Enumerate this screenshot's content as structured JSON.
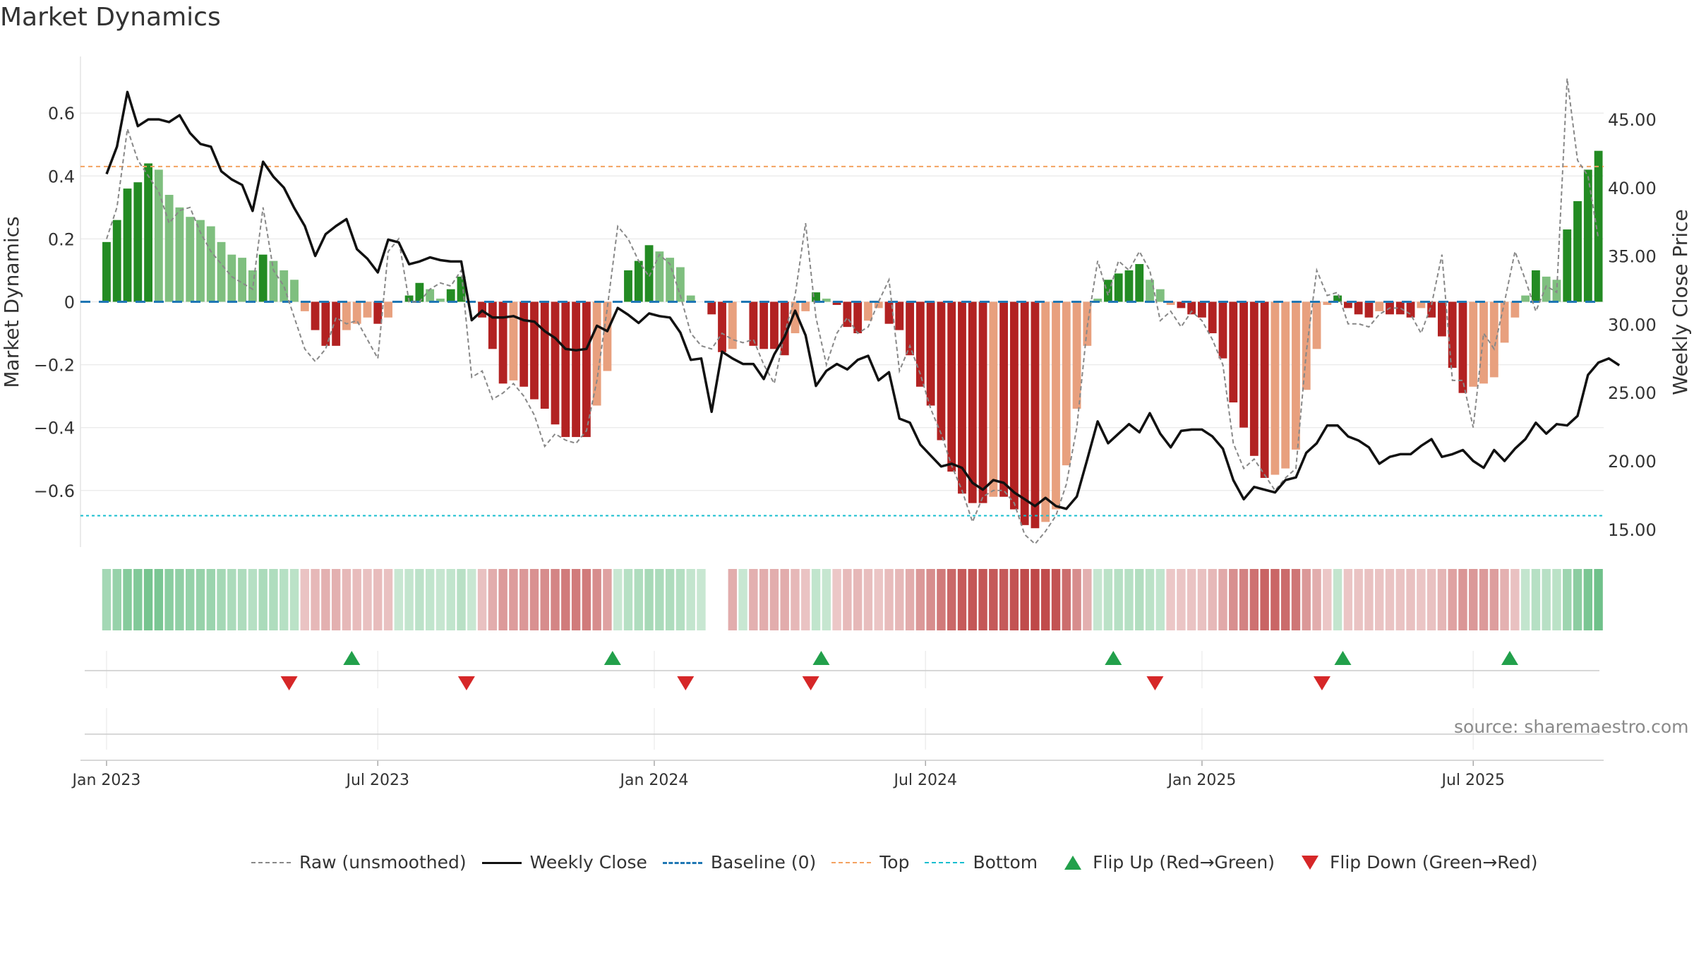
{
  "title": "Market Dynamics",
  "source": "source: sharemaestro.com",
  "legend": {
    "raw": "Raw (unsmoothed)",
    "close": "Weekly Close",
    "baseline": "Baseline (0)",
    "top": "Top",
    "bottom": "Bottom",
    "flip_up": "Flip Up (Red→Green)",
    "flip_down": "Flip Down (Green→Red)"
  },
  "colors": {
    "strong_green": "#238b23",
    "light_green": "#7fbf7f",
    "strong_red": "#b22222",
    "light_red": "#e8a07e",
    "close_line": "#111111",
    "raw_line": "#888888",
    "baseline": "#1f77b4",
    "top": "#f4a261",
    "bottom": "#17becf",
    "flip_up": "#22a04b",
    "flip_down": "#d62728"
  },
  "chart_data": {
    "type": "bar",
    "ylabel": "Market Dynamics",
    "y2label": "Weekly Close Price",
    "ylim": [
      -0.78,
      0.78
    ],
    "y2lim": [
      13.7,
      49.6
    ],
    "yticks": [
      {
        "v": 0.6,
        "label": "0.6"
      },
      {
        "v": 0.4,
        "label": "0.4"
      },
      {
        "v": 0.2,
        "label": "0.2"
      },
      {
        "v": 0,
        "label": "0"
      },
      {
        "v": -0.2,
        "label": "−0.2"
      },
      {
        "v": -0.4,
        "label": "−0.4"
      },
      {
        "v": -0.6,
        "label": "−0.6"
      }
    ],
    "y2ticks": [
      "45.00",
      "40.00",
      "35.00",
      "30.00",
      "25.00",
      "20.00",
      "15.00"
    ],
    "xticks": [
      {
        "week": 0,
        "label": "Jan 2023"
      },
      {
        "week": 26,
        "label": "Jul 2023"
      },
      {
        "week": 52.5,
        "label": "Jan 2024"
      },
      {
        "week": 78.5,
        "label": "Jul 2024"
      },
      {
        "week": 105,
        "label": "Jan 2025"
      },
      {
        "week": 131,
        "label": "Jul 2025"
      }
    ],
    "top": 0.43,
    "bottom": -0.68,
    "baseline": 0,
    "x_start_week": -2,
    "dynamics": [
      0.19,
      0.26,
      0.36,
      0.38,
      0.44,
      0.42,
      0.34,
      0.3,
      0.27,
      0.26,
      0.24,
      0.19,
      0.15,
      0.14,
      0.1,
      0.15,
      0.13,
      0.1,
      0.07,
      -0.03,
      -0.09,
      -0.14,
      -0.14,
      -0.09,
      -0.07,
      -0.05,
      -0.07,
      -0.05,
      0.0,
      0.02,
      0.06,
      0.04,
      0.01,
      0.04,
      0.08,
      0.0,
      -0.05,
      -0.15,
      -0.26,
      -0.25,
      -0.27,
      -0.31,
      -0.34,
      -0.39,
      -0.43,
      -0.43,
      -0.43,
      -0.33,
      -0.22,
      0.0,
      0.1,
      0.13,
      0.18,
      0.16,
      0.14,
      0.11,
      0.02,
      0.0,
      -0.04,
      -0.16,
      -0.15,
      0.0,
      -0.14,
      -0.15,
      -0.15,
      -0.17,
      -0.1,
      -0.03,
      0.03,
      0.01,
      -0.01,
      -0.08,
      -0.1,
      -0.06,
      -0.02,
      -0.07,
      -0.09,
      -0.17,
      -0.27,
      -0.33,
      -0.44,
      -0.54,
      -0.61,
      -0.64,
      -0.64,
      -0.62,
      -0.62,
      -0.66,
      -0.71,
      -0.72,
      -0.7,
      -0.66,
      -0.52,
      -0.34,
      -0.14,
      0.01,
      0.07,
      0.09,
      0.1,
      0.12,
      0.07,
      0.04,
      -0.01,
      -0.02,
      -0.04,
      -0.05,
      -0.1,
      -0.18,
      -0.32,
      -0.4,
      -0.49,
      -0.56,
      -0.55,
      -0.53,
      -0.47,
      -0.28,
      -0.15,
      -0.01,
      0.02,
      -0.02,
      -0.04,
      -0.05,
      -0.03,
      -0.04,
      -0.04,
      -0.05,
      -0.02,
      -0.05,
      -0.11,
      -0.21,
      -0.29,
      -0.27,
      -0.26,
      -0.24,
      -0.13,
      -0.05,
      0.02,
      0.1,
      0.08,
      0.07,
      0.23,
      0.32,
      0.42,
      0.48
    ],
    "raw": [
      0.2,
      0.3,
      0.55,
      0.45,
      0.4,
      0.35,
      0.25,
      0.29,
      0.3,
      0.22,
      0.16,
      0.12,
      0.08,
      0.06,
      0.04,
      0.3,
      0.1,
      0.05,
      -0.05,
      -0.15,
      -0.19,
      -0.15,
      -0.05,
      -0.07,
      -0.06,
      -0.12,
      -0.18,
      0.16,
      0.2,
      0.0,
      0.0,
      0.04,
      0.06,
      0.05,
      0.1,
      -0.24,
      -0.22,
      -0.31,
      -0.29,
      -0.26,
      -0.3,
      -0.36,
      -0.46,
      -0.42,
      -0.44,
      -0.45,
      -0.41,
      -0.25,
      -0.02,
      0.24,
      0.2,
      0.13,
      0.08,
      0.15,
      0.12,
      0.02,
      -0.1,
      -0.14,
      -0.15,
      -0.1,
      -0.12,
      -0.13,
      -0.12,
      -0.2,
      -0.26,
      -0.1,
      0.02,
      0.25,
      -0.05,
      -0.2,
      -0.1,
      -0.05,
      -0.1,
      -0.08,
      0.0,
      0.07,
      -0.22,
      -0.14,
      -0.23,
      -0.34,
      -0.42,
      -0.52,
      -0.6,
      -0.7,
      -0.62,
      -0.6,
      -0.6,
      -0.64,
      -0.74,
      -0.77,
      -0.73,
      -0.68,
      -0.58,
      -0.4,
      -0.08,
      0.13,
      0.02,
      0.13,
      0.1,
      0.16,
      0.1,
      -0.06,
      -0.03,
      -0.08,
      -0.03,
      -0.06,
      -0.12,
      -0.2,
      -0.45,
      -0.53,
      -0.5,
      -0.55,
      -0.6,
      -0.56,
      -0.53,
      -0.16,
      0.1,
      0.02,
      0.03,
      -0.07,
      -0.07,
      -0.08,
      -0.04,
      -0.02,
      -0.02,
      -0.04,
      -0.1,
      -0.01,
      0.15,
      -0.25,
      -0.25,
      -0.4,
      -0.1,
      -0.15,
      0.0,
      0.16,
      0.07,
      -0.03,
      0.05,
      0.03,
      0.71,
      0.45,
      0.4,
      0.2
    ],
    "close": [
      41.0,
      43.0,
      47.0,
      44.5,
      45.0,
      45.0,
      44.8,
      45.3,
      44.0,
      43.2,
      43.0,
      41.2,
      40.6,
      40.2,
      38.3,
      41.9,
      40.8,
      40.0,
      38.5,
      37.2,
      35.0,
      36.6,
      37.2,
      37.7,
      35.5,
      34.8,
      33.8,
      36.2,
      36.0,
      34.4,
      34.6,
      34.9,
      34.7,
      34.6,
      34.6,
      30.3,
      31.0,
      30.5,
      30.5,
      30.6,
      30.3,
      30.2,
      29.5,
      29.0,
      28.2,
      28.1,
      28.2,
      29.9,
      29.5,
      31.2,
      30.7,
      30.1,
      30.8,
      30.6,
      30.5,
      29.4,
      27.4,
      27.5,
      23.6,
      28.0,
      27.5,
      27.1,
      27.1,
      26.0,
      27.8,
      29.1,
      31.0,
      29.2,
      25.5,
      26.6,
      27.1,
      26.7,
      27.4,
      27.7,
      25.9,
      26.5,
      23.1,
      22.8,
      21.2,
      20.4,
      19.6,
      19.8,
      19.5,
      18.4,
      17.9,
      18.6,
      18.4,
      17.7,
      17.2,
      16.7,
      17.3,
      16.7,
      16.5,
      17.4,
      20.1,
      22.9,
      21.3,
      22.0,
      22.7,
      22.1,
      23.5,
      22.0,
      21.0,
      22.2,
      22.3,
      22.3,
      21.8,
      20.9,
      18.6,
      17.2,
      18.1,
      17.9,
      17.7,
      18.6,
      18.8,
      20.6,
      21.3,
      22.6,
      22.6,
      21.8,
      21.5,
      21.0,
      19.8,
      20.3,
      20.5,
      20.5,
      21.1,
      21.6,
      20.3,
      20.5,
      20.8,
      20.0,
      19.5,
      20.8,
      20.0,
      20.9,
      21.6,
      22.8,
      22.0,
      22.7,
      22.6,
      23.3,
      26.3,
      27.2,
      27.5,
      27.0
    ],
    "strip_gaps": [
      58,
      59
    ],
    "flips_up": [
      23.5,
      48.5,
      68.5,
      96.5,
      118.5,
      134.5
    ],
    "flips_down": [
      17.5,
      34.5,
      55.5,
      67.5,
      100.5,
      116.5
    ]
  }
}
